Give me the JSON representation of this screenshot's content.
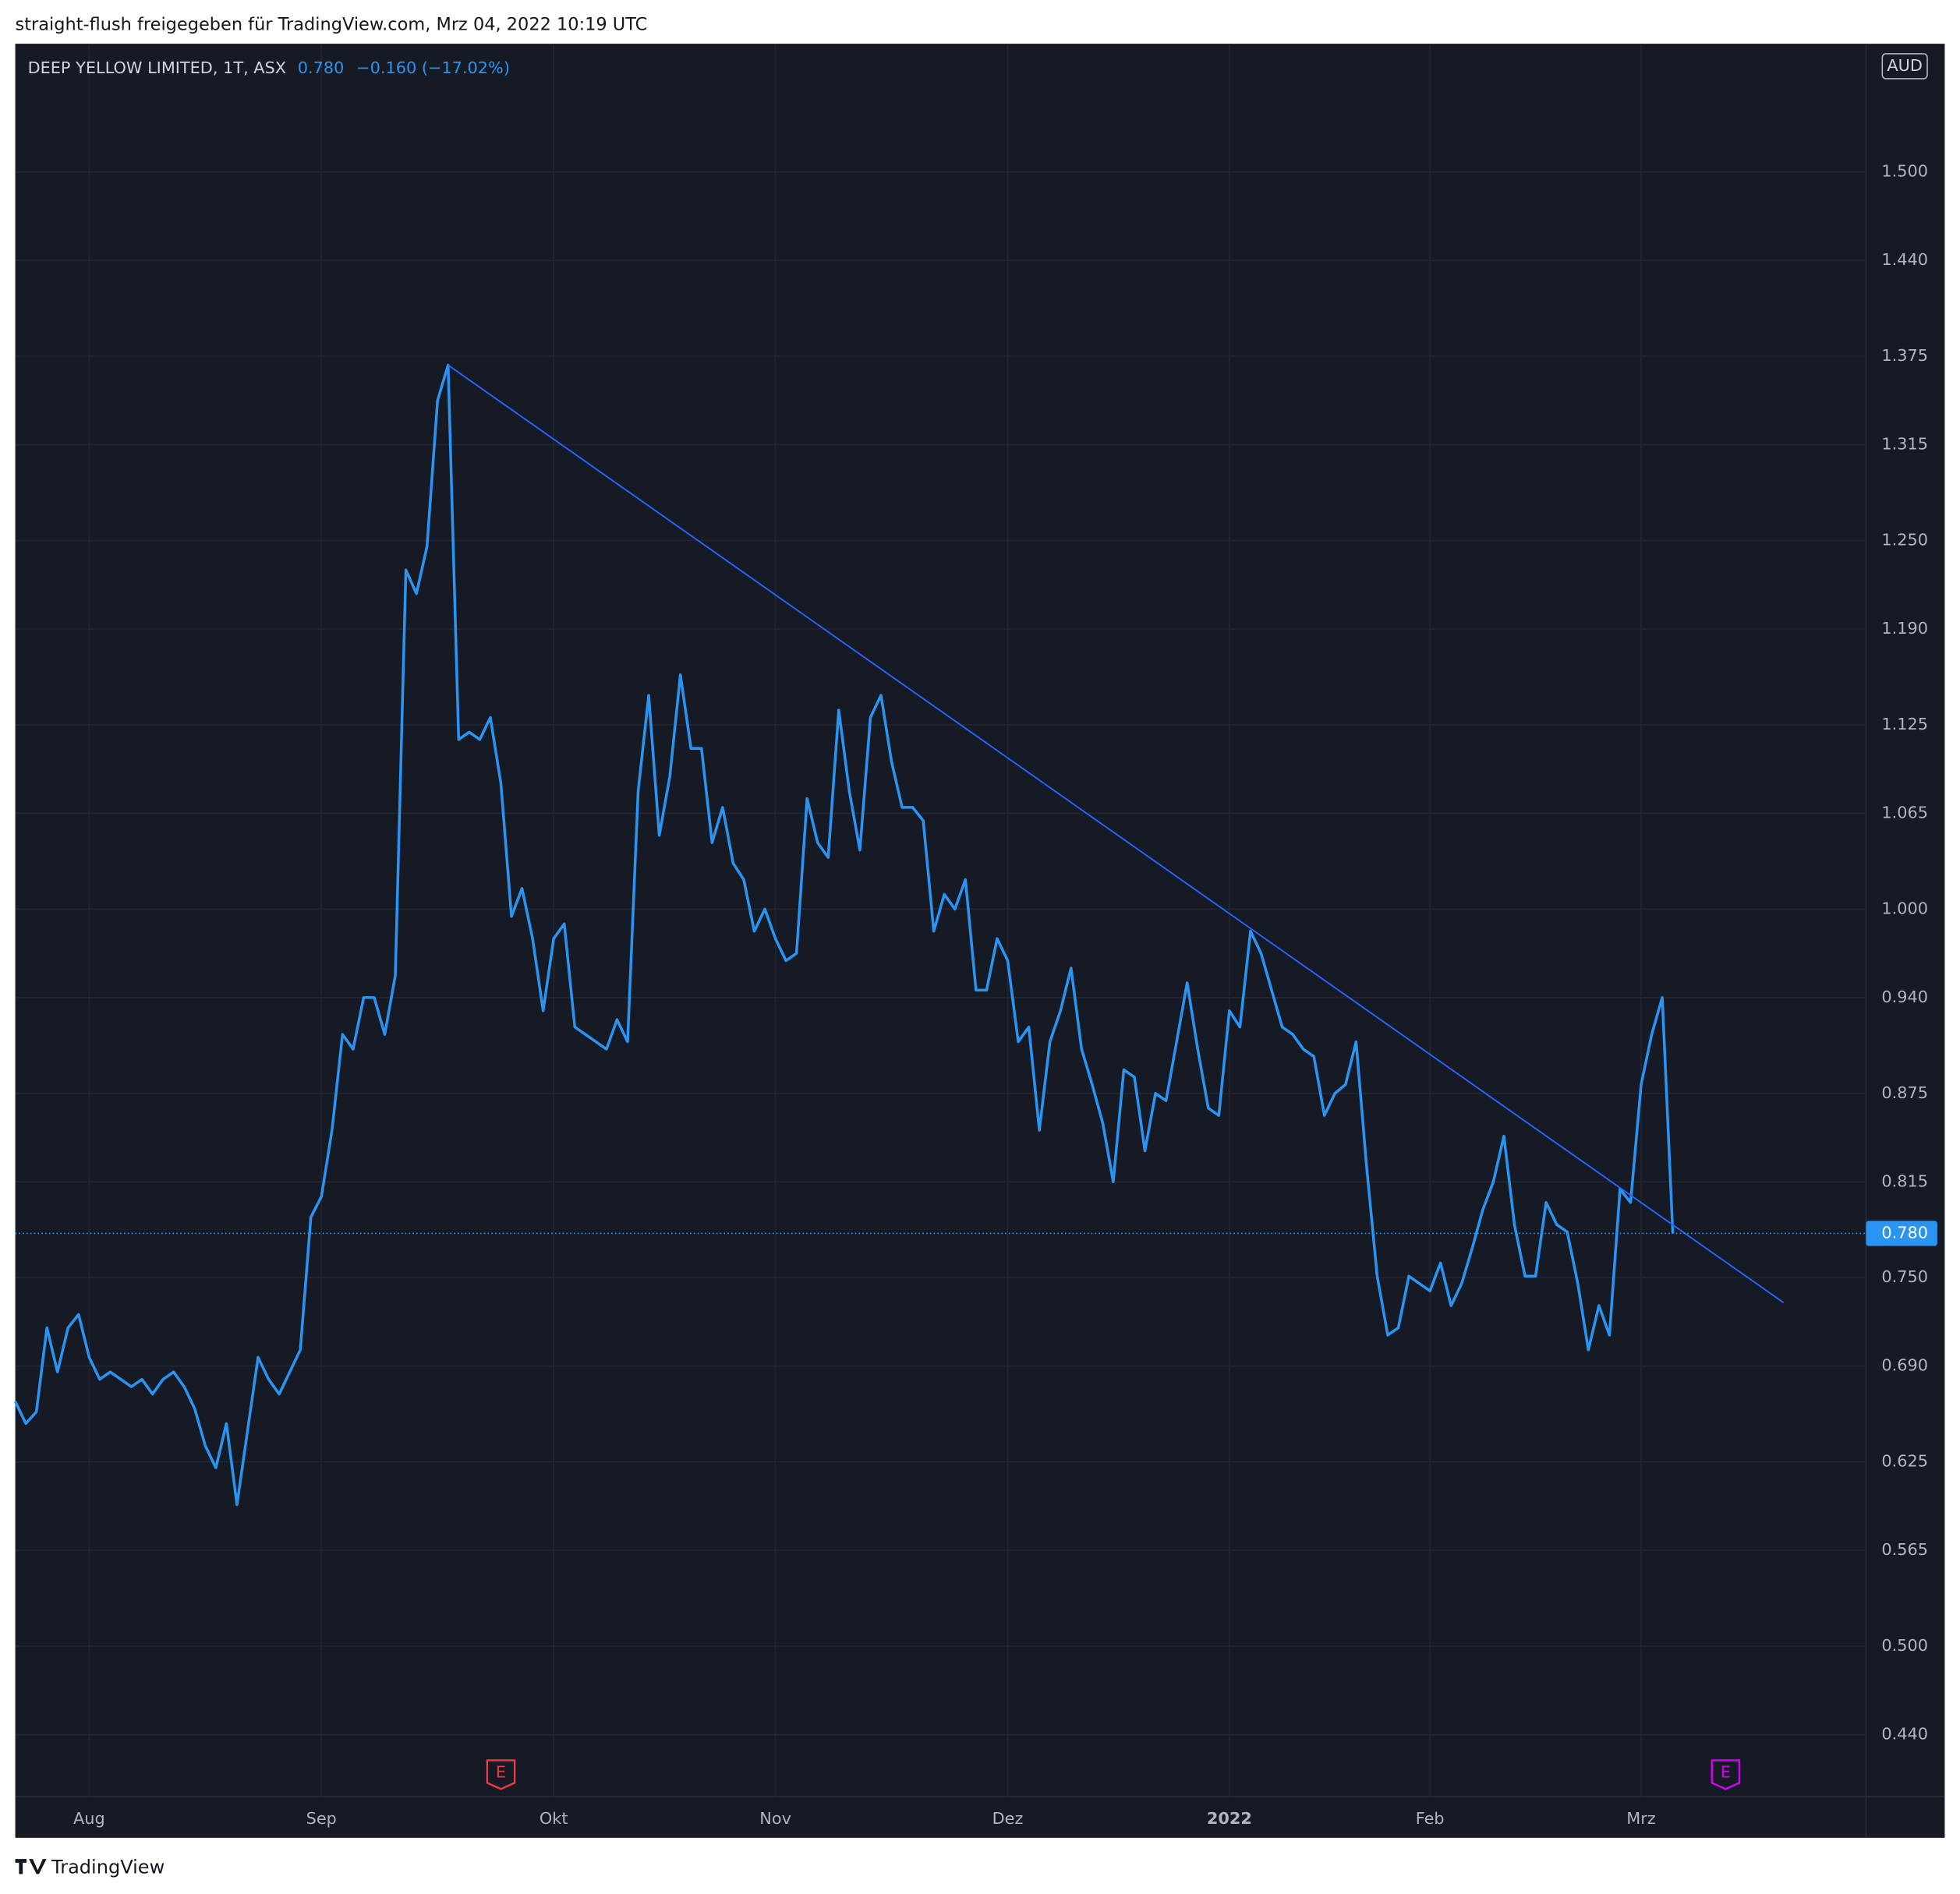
{
  "header": {
    "shared_by": "straight-flush freigegeben für TradingView.com, Mrz 04, 2022 10:19 UTC"
  },
  "footer": {
    "brand": "TradingView"
  },
  "chart_data": {
    "type": "line",
    "symbol": "DEEP YELLOW LIMITED, 1T, ASX",
    "last_price": {
      "value": 0.78,
      "label": "0.780"
    },
    "change": "−0.160 (−17.02%)",
    "currency": "AUD",
    "grid": true,
    "series": [
      {
        "name": "DEEP YELLOW LIMITED",
        "color": "#2a94f2",
        "values": [
          0.666,
          0.651,
          0.659,
          0.716,
          0.686,
          0.716,
          0.725,
          0.696,
          0.681,
          0.686,
          0.681,
          0.676,
          0.681,
          0.671,
          0.681,
          0.686,
          0.676,
          0.661,
          0.636,
          0.621,
          0.651,
          0.596,
          0.646,
          0.696,
          0.681,
          0.671,
          0.686,
          0.701,
          0.791,
          0.805,
          0.85,
          0.915,
          0.905,
          0.94,
          0.94,
          0.915,
          0.955,
          1.23,
          1.214,
          1.246,
          1.345,
          1.369,
          1.115,
          1.12,
          1.115,
          1.13,
          1.085,
          0.995,
          1.014,
          0.98,
          0.931,
          0.98,
          0.99,
          0.92,
          0.915,
          0.91,
          0.905,
          0.925,
          0.91,
          1.08,
          1.145,
          1.05,
          1.09,
          1.159,
          1.109,
          1.109,
          1.045,
          1.069,
          1.031,
          1.02,
          0.985,
          1.0,
          0.98,
          0.965,
          0.97,
          1.075,
          1.045,
          1.035,
          1.135,
          1.08,
          1.04,
          1.13,
          1.145,
          1.1,
          1.069,
          1.069,
          1.06,
          0.985,
          1.01,
          1.0,
          1.02,
          0.945,
          0.945,
          0.98,
          0.965,
          0.91,
          0.92,
          0.85,
          0.91,
          0.931,
          0.96,
          0.905,
          0.881,
          0.855,
          0.815,
          0.891,
          0.886,
          0.836,
          0.875,
          0.87,
          0.91,
          0.95,
          0.905,
          0.865,
          0.86,
          0.931,
          0.92,
          0.985,
          0.97,
          0.945,
          0.92,
          0.915,
          0.905,
          0.9,
          0.86,
          0.875,
          0.881,
          0.91,
          0.825,
          0.751,
          0.711,
          0.716,
          0.751,
          0.746,
          0.741,
          0.76,
          0.731,
          0.746,
          0.77,
          0.796,
          0.815,
          0.846,
          0.786,
          0.751,
          0.751,
          0.801,
          0.786,
          0.781,
          0.746,
          0.701,
          0.731,
          0.711,
          0.81,
          0.801,
          0.881,
          0.915,
          0.94,
          0.78
        ]
      }
    ],
    "trendline": {
      "color": "#2962ff",
      "x": [
        41,
        167.5
      ],
      "values": [
        1.369,
        0.733
      ]
    },
    "earnings": [
      {
        "x": 46,
        "label": "E",
        "color": "#f23645"
      },
      {
        "x": 162,
        "label": "E",
        "color": "#d500f9"
      }
    ],
    "xlim": [
      0,
      175.3
    ],
    "xticks": [
      {
        "value": 7,
        "label": "Aug"
      },
      {
        "value": 29,
        "label": "Sep"
      },
      {
        "value": 51,
        "label": "Okt"
      },
      {
        "value": 72,
        "label": "Nov"
      },
      {
        "value": 94,
        "label": "Dez"
      },
      {
        "value": 115,
        "label": "2022",
        "bold": true
      },
      {
        "value": 134,
        "label": "Feb"
      },
      {
        "value": 154,
        "label": "Mrz"
      }
    ],
    "ylim": [
      0.398,
      1.587
    ],
    "yticks": [
      {
        "value": 1.5,
        "label": "1.500"
      },
      {
        "value": 1.44,
        "label": "1.440"
      },
      1.375,
      {
        "value": 1.315,
        "label": "1.315"
      },
      {
        "value": 1.25,
        "label": "1.250"
      },
      {
        "value": 1.19,
        "label": "1.190"
      },
      1.125,
      {
        "value": 1.065,
        "label": "1.065"
      },
      {
        "value": 1.0,
        "label": "1.000"
      },
      {
        "value": 0.94,
        "label": "0.940"
      },
      0.875,
      {
        "value": 0.815,
        "label": "0.815"
      },
      {
        "value": 0.75,
        "label": "0.750"
      },
      {
        "value": 0.69,
        "label": "0.690"
      },
      0.625,
      {
        "value": 0.565,
        "label": "0.565"
      },
      {
        "value": 0.5,
        "label": "0.500"
      },
      {
        "value": 0.44,
        "label": "0.440"
      }
    ]
  }
}
